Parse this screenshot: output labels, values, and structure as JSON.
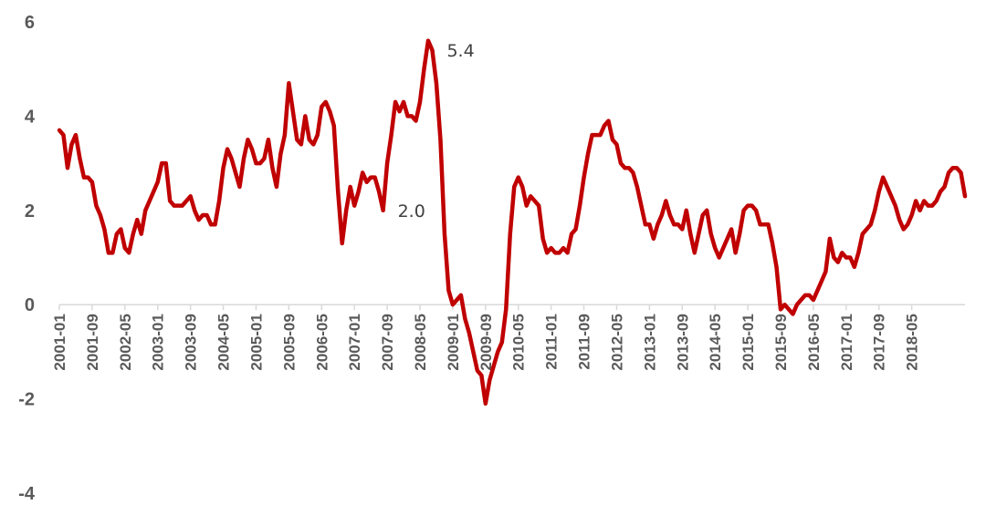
{
  "chart_data": {
    "type": "line",
    "title": "",
    "xlabel": "",
    "ylabel": "",
    "ylim": [
      -4,
      6
    ],
    "yticks": [
      -4,
      -2,
      0,
      2,
      4,
      6
    ],
    "xticks": [
      "2001-01",
      "2001-09",
      "2002-05",
      "2003-01",
      "2003-09",
      "2004-05",
      "2005-01",
      "2005-09",
      "2006-05",
      "2007-01",
      "2007-09",
      "2008-05",
      "2009-01",
      "2009-09",
      "2010-05",
      "2011-01",
      "2011-09",
      "2012-05",
      "2013-01",
      "2013-09",
      "2014-05",
      "2015-01",
      "2015-09",
      "2016-05",
      "2017-01",
      "2017-09",
      "2018-05"
    ],
    "grid": false,
    "legend": "none",
    "color": "#C00000",
    "x_start": "2001-01",
    "frequency": "monthly",
    "series": [
      {
        "values": [
          3.7,
          3.6,
          2.9,
          3.4,
          3.6,
          3.1,
          2.7,
          2.7,
          2.6,
          2.1,
          1.9,
          1.6,
          1.1,
          1.1,
          1.5,
          1.6,
          1.2,
          1.1,
          1.5,
          1.8,
          1.5,
          2.0,
          2.2,
          2.4,
          2.6,
          3.0,
          3.0,
          2.2,
          2.1,
          2.1,
          2.1,
          2.2,
          2.3,
          2.0,
          1.8,
          1.9,
          1.9,
          1.7,
          1.7,
          2.2,
          2.9,
          3.3,
          3.1,
          2.8,
          2.5,
          3.1,
          3.5,
          3.3,
          3.0,
          3.0,
          3.1,
          3.5,
          2.9,
          2.5,
          3.2,
          3.6,
          4.7,
          4.1,
          3.5,
          3.4,
          4.0,
          3.5,
          3.4,
          3.6,
          4.2,
          4.3,
          4.1,
          3.8,
          2.4,
          1.3,
          2.0,
          2.5,
          2.1,
          2.4,
          2.8,
          2.6,
          2.7,
          2.7,
          2.4,
          2.0,
          3.0,
          3.6,
          4.3,
          4.1,
          4.3,
          4.0,
          4.0,
          3.9,
          4.3,
          5.0,
          5.6,
          5.4,
          4.7,
          3.5,
          1.5,
          0.3,
          0.0,
          0.1,
          0.2,
          -0.3,
          -0.6,
          -1.0,
          -1.4,
          -1.5,
          -2.1,
          -1.6,
          -1.3,
          -1.0,
          -0.8,
          -0.1,
          1.5,
          2.5,
          2.7,
          2.5,
          2.1,
          2.3,
          2.2,
          2.1,
          1.4,
          1.1,
          1.2,
          1.1,
          1.1,
          1.2,
          1.1,
          1.5,
          1.6,
          2.1,
          2.7,
          3.2,
          3.6,
          3.6,
          3.6,
          3.8,
          3.9,
          3.5,
          3.4,
          3.0,
          2.9,
          2.9,
          2.8,
          2.5,
          2.1,
          1.7,
          1.7,
          1.4,
          1.7,
          1.9,
          2.2,
          1.9,
          1.7,
          1.7,
          1.6,
          2.0,
          1.5,
          1.1,
          1.5,
          1.9,
          2.0,
          1.5,
          1.2,
          1.0,
          1.2,
          1.4,
          1.6,
          1.1,
          1.5,
          2.0,
          2.1,
          2.1,
          2.0,
          1.7,
          1.7,
          1.7,
          1.3,
          0.8,
          -0.1,
          0.0,
          -0.1,
          -0.2,
          0.0,
          0.1,
          0.2,
          0.2,
          0.1,
          0.3,
          0.5,
          0.7,
          1.4,
          1.0,
          0.9,
          1.1,
          1.0,
          1.0,
          0.8,
          1.1,
          1.5,
          1.6,
          1.7,
          2.0,
          2.4,
          2.7,
          2.5,
          2.3,
          2.1,
          1.8,
          1.6,
          1.7,
          1.9,
          2.2,
          2.0,
          2.2,
          2.1,
          2.1,
          2.2,
          2.4,
          2.5,
          2.8,
          2.9,
          2.9,
          2.8,
          2.3
        ]
      }
    ],
    "annotations": [
      {
        "label": "5.4",
        "x": "2008-08",
        "y": 5.4
      },
      {
        "label": "2.0",
        "x": "2007-08",
        "y": 2.0
      }
    ]
  }
}
